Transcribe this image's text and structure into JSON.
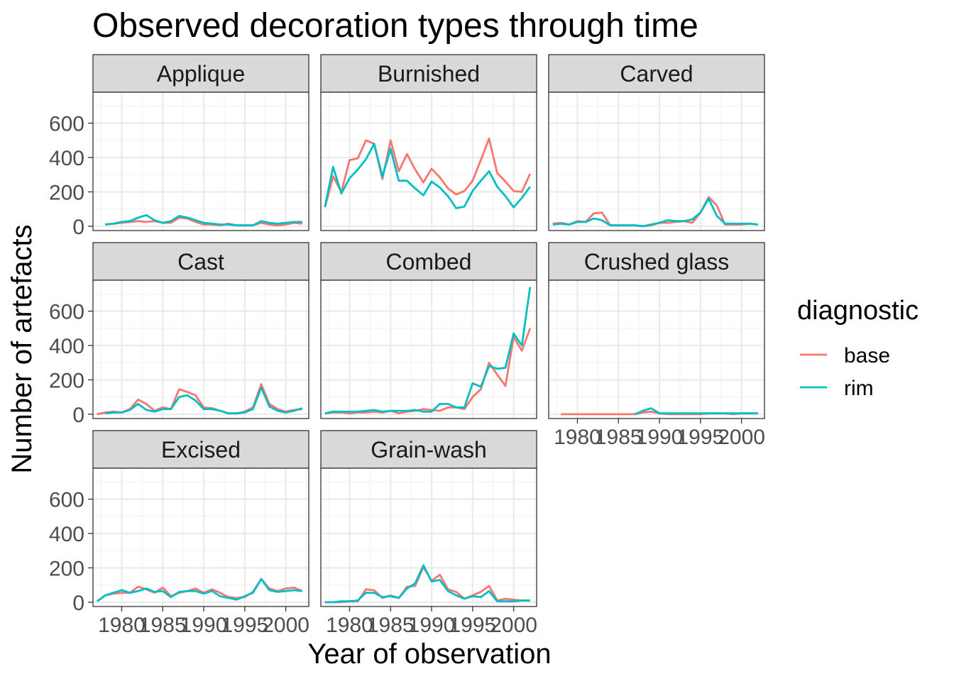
{
  "chart_data": {
    "type": "line",
    "title": "Observed decoration types through time",
    "xlabel": "Year of observation",
    "ylabel": "Number of artefacts",
    "xlim": [
      1976.5,
      2002.8
    ],
    "ylim": [
      -25,
      780
    ],
    "x_ticks": [
      1980,
      1985,
      1990,
      1995,
      2000
    ],
    "x_tick_labels": [
      "1980",
      "1985",
      "1990",
      "1995",
      "2000"
    ],
    "y_ticks": [
      0,
      200,
      400,
      600
    ],
    "y_tick_labels": [
      "0",
      "200",
      "400",
      "600"
    ],
    "grid": true,
    "legend": {
      "title": "diagnostic",
      "placement": "right",
      "entries": [
        {
          "label": "base",
          "color": "#F8766D"
        },
        {
          "label": "rim",
          "color": "#00BFC4"
        }
      ]
    },
    "x": [
      1977,
      1978,
      1979,
      1980,
      1981,
      1982,
      1983,
      1984,
      1985,
      1986,
      1987,
      1988,
      1989,
      1990,
      1991,
      1992,
      1993,
      1994,
      1995,
      1996,
      1997,
      1998,
      1999,
      2000,
      2001,
      2002
    ],
    "panels": [
      {
        "name": "Applique",
        "series": [
          {
            "name": "base",
            "x": [
              1978,
              1979,
              1980,
              1981,
              1982,
              1983,
              1984,
              1985,
              1986,
              1987,
              1988,
              1989,
              1990,
              1991,
              1992,
              1993,
              1994,
              1995,
              1996,
              1997,
              1998,
              1999,
              2000,
              2001,
              2002
            ],
            "values": [
              10,
              15,
              20,
              25,
              30,
              25,
              30,
              20,
              20,
              50,
              45,
              25,
              10,
              10,
              5,
              15,
              5,
              5,
              5,
              20,
              10,
              5,
              10,
              20,
              15
            ]
          },
          {
            "name": "rim",
            "x": [
              1978,
              1979,
              1980,
              1981,
              1982,
              1983,
              1984,
              1985,
              1986,
              1987,
              1988,
              1989,
              1990,
              1991,
              1992,
              1993,
              1994,
              1995,
              1996,
              1997,
              1998,
              1999,
              2000,
              2001,
              2002
            ],
            "values": [
              10,
              15,
              25,
              30,
              50,
              65,
              35,
              20,
              30,
              60,
              50,
              35,
              20,
              15,
              10,
              10,
              5,
              5,
              5,
              30,
              20,
              15,
              20,
              25,
              25
            ]
          }
        ]
      },
      {
        "name": "Burnished",
        "series": [
          {
            "name": "base",
            "x": [
              1977,
              1978,
              1979,
              1980,
              1981,
              1982,
              1983,
              1984,
              1985,
              1986,
              1987,
              1988,
              1989,
              1990,
              1991,
              1992,
              1993,
              1994,
              1995,
              1996,
              1997,
              1998,
              1999,
              2000,
              2001,
              2002
            ],
            "values": [
              110,
              290,
              200,
              385,
              395,
              500,
              480,
              275,
              500,
              320,
              420,
              330,
              255,
              335,
              285,
              220,
              185,
              205,
              265,
              385,
              510,
              310,
              260,
              205,
              200,
              305
            ]
          },
          {
            "name": "rim",
            "x": [
              1977,
              1978,
              1979,
              1980,
              1981,
              1982,
              1983,
              1984,
              1985,
              1986,
              1987,
              1988,
              1989,
              1990,
              1991,
              1992,
              1993,
              1994,
              1995,
              1996,
              1997,
              1998,
              1999,
              2000,
              2001,
              2002
            ],
            "values": [
              115,
              345,
              190,
              280,
              330,
              390,
              480,
              290,
              450,
              265,
              265,
              220,
              180,
              260,
              225,
              175,
              105,
              115,
              205,
              265,
              320,
              230,
              175,
              110,
              165,
              230
            ]
          }
        ]
      },
      {
        "name": "Carved",
        "series": [
          {
            "name": "base",
            "x": [
              1977,
              1978,
              1979,
              1980,
              1981,
              1982,
              1983,
              1984,
              1985,
              1986,
              1987,
              1988,
              1989,
              1990,
              1991,
              1992,
              1993,
              1994,
              1995,
              1996,
              1997,
              1998,
              1999,
              2000,
              2001,
              2002
            ],
            "values": [
              15,
              20,
              10,
              30,
              25,
              75,
              80,
              5,
              5,
              5,
              5,
              0,
              5,
              20,
              20,
              25,
              30,
              20,
              80,
              170,
              120,
              10,
              10,
              10,
              15,
              10
            ]
          },
          {
            "name": "rim",
            "x": [
              1977,
              1978,
              1979,
              1980,
              1981,
              1982,
              1983,
              1984,
              1985,
              1986,
              1987,
              1988,
              1989,
              1990,
              1991,
              1992,
              1993,
              1994,
              1995,
              1996,
              1997,
              1998,
              1999,
              2000,
              2001,
              2002
            ],
            "values": [
              10,
              15,
              10,
              25,
              25,
              45,
              35,
              5,
              5,
              5,
              5,
              0,
              10,
              20,
              35,
              30,
              30,
              40,
              80,
              160,
              60,
              15,
              15,
              15,
              15,
              10
            ]
          }
        ]
      },
      {
        "name": "Cast",
        "series": [
          {
            "name": "base",
            "x": [
              1977,
              1978,
              1979,
              1980,
              1981,
              1982,
              1983,
              1984,
              1985,
              1986,
              1987,
              1988,
              1989,
              1990,
              1991,
              1992,
              1993,
              1994,
              1995,
              1996,
              1997,
              1998,
              1999,
              2000,
              2001,
              2002
            ],
            "values": [
              0,
              10,
              15,
              10,
              30,
              85,
              60,
              20,
              40,
              30,
              145,
              130,
              110,
              40,
              35,
              20,
              5,
              5,
              15,
              40,
              175,
              60,
              30,
              15,
              25,
              30
            ]
          },
          {
            "name": "rim",
            "x": [
              1978,
              1979,
              1980,
              1981,
              1982,
              1983,
              1984,
              1985,
              1986,
              1987,
              1988,
              1989,
              1990,
              1991,
              1992,
              1993,
              1994,
              1995,
              1996,
              1997,
              1998,
              1999,
              2000,
              2001,
              2002
            ],
            "values": [
              5,
              10,
              10,
              25,
              60,
              25,
              15,
              30,
              30,
              100,
              110,
              80,
              30,
              30,
              20,
              5,
              5,
              10,
              30,
              155,
              45,
              20,
              10,
              20,
              35
            ]
          }
        ]
      },
      {
        "name": "Combed",
        "series": [
          {
            "name": "base",
            "x": [
              1977,
              1978,
              1979,
              1980,
              1981,
              1982,
              1983,
              1984,
              1985,
              1986,
              1987,
              1988,
              1989,
              1990,
              1991,
              1992,
              1993,
              1994,
              1995,
              1996,
              1997,
              1998,
              1999,
              2000,
              2001,
              2002
            ],
            "values": [
              5,
              10,
              10,
              5,
              10,
              10,
              15,
              10,
              20,
              5,
              15,
              20,
              30,
              25,
              20,
              40,
              40,
              30,
              100,
              145,
              300,
              230,
              165,
              450,
              370,
              500
            ]
          },
          {
            "name": "rim",
            "x": [
              1977,
              1978,
              1979,
              1980,
              1981,
              1982,
              1983,
              1984,
              1985,
              1986,
              1987,
              1988,
              1989,
              1990,
              1991,
              1992,
              1993,
              1994,
              1995,
              1996,
              1997,
              1998,
              1999,
              2000,
              2001,
              2002
            ],
            "values": [
              5,
              15,
              15,
              15,
              15,
              20,
              25,
              15,
              20,
              20,
              20,
              25,
              15,
              15,
              60,
              60,
              40,
              40,
              180,
              160,
              280,
              265,
              270,
              470,
              400,
              740
            ]
          }
        ]
      },
      {
        "name": "Crushed glass",
        "series": [
          {
            "name": "base",
            "x": [
              1978,
              1979,
              1980,
              1981,
              1982,
              1983,
              1984,
              1985,
              1986,
              1987,
              1988,
              1989,
              1990,
              1991,
              1992,
              1993,
              1994,
              1995,
              1996,
              1997,
              1998,
              1999,
              2000,
              2001,
              2002
            ],
            "values": [
              0,
              0,
              0,
              0,
              0,
              0,
              0,
              0,
              0,
              0,
              10,
              15,
              5,
              0,
              0,
              0,
              0,
              0,
              5,
              5,
              5,
              0,
              5,
              5,
              5
            ]
          },
          {
            "name": "rim",
            "x": [
              1987,
              1988,
              1989,
              1990,
              1991,
              1992,
              1993,
              1994,
              1995,
              1996,
              1997,
              1998,
              1999,
              2000,
              2001,
              2002
            ],
            "values": [
              0,
              20,
              35,
              5,
              5,
              5,
              5,
              5,
              5,
              5,
              5,
              5,
              5,
              5,
              5,
              5
            ]
          }
        ]
      },
      {
        "name": "Excised",
        "series": [
          {
            "name": "base",
            "x": [
              1977,
              1978,
              1979,
              1980,
              1981,
              1982,
              1983,
              1984,
              1985,
              1986,
              1987,
              1988,
              1989,
              1990,
              1991,
              1992,
              1993,
              1994,
              1995,
              1996,
              1997,
              1998,
              1999,
              2000,
              2001,
              2002
            ],
            "values": [
              5,
              40,
              50,
              55,
              55,
              90,
              75,
              55,
              85,
              35,
              55,
              65,
              80,
              55,
              75,
              55,
              30,
              25,
              30,
              60,
              135,
              80,
              65,
              80,
              85,
              65
            ]
          },
          {
            "name": "rim",
            "x": [
              1977,
              1978,
              1979,
              1980,
              1981,
              1982,
              1983,
              1984,
              1985,
              1986,
              1987,
              1988,
              1989,
              1990,
              1991,
              1992,
              1993,
              1994,
              1995,
              1996,
              1997,
              1998,
              1999,
              2000,
              2001,
              2002
            ],
            "values": [
              5,
              40,
              55,
              70,
              55,
              65,
              80,
              60,
              65,
              30,
              60,
              65,
              65,
              50,
              65,
              35,
              25,
              15,
              35,
              55,
              135,
              70,
              60,
              65,
              70,
              65
            ]
          }
        ]
      },
      {
        "name": "Grain-wash",
        "series": [
          {
            "name": "base",
            "x": [
              1977,
              1978,
              1979,
              1980,
              1981,
              1982,
              1983,
              1984,
              1985,
              1986,
              1987,
              1988,
              1989,
              1990,
              1991,
              1992,
              1993,
              1994,
              1995,
              1996,
              1997,
              1998,
              1999,
              2000,
              2001,
              2002
            ],
            "values": [
              0,
              0,
              0,
              5,
              5,
              75,
              70,
              25,
              40,
              25,
              90,
              95,
              205,
              125,
              160,
              75,
              60,
              20,
              40,
              60,
              95,
              10,
              20,
              15,
              10,
              10
            ]
          },
          {
            "name": "rim",
            "x": [
              1977,
              1978,
              1979,
              1980,
              1981,
              1982,
              1983,
              1984,
              1985,
              1986,
              1987,
              1988,
              1989,
              1990,
              1991,
              1992,
              1993,
              1994,
              1995,
              1996,
              1997,
              1998,
              1999,
              2000,
              2001,
              2002
            ],
            "values": [
              0,
              0,
              5,
              5,
              10,
              55,
              55,
              30,
              35,
              25,
              80,
              110,
              215,
              120,
              130,
              65,
              40,
              20,
              35,
              30,
              65,
              5,
              5,
              5,
              10,
              10
            ]
          }
        ]
      }
    ]
  }
}
